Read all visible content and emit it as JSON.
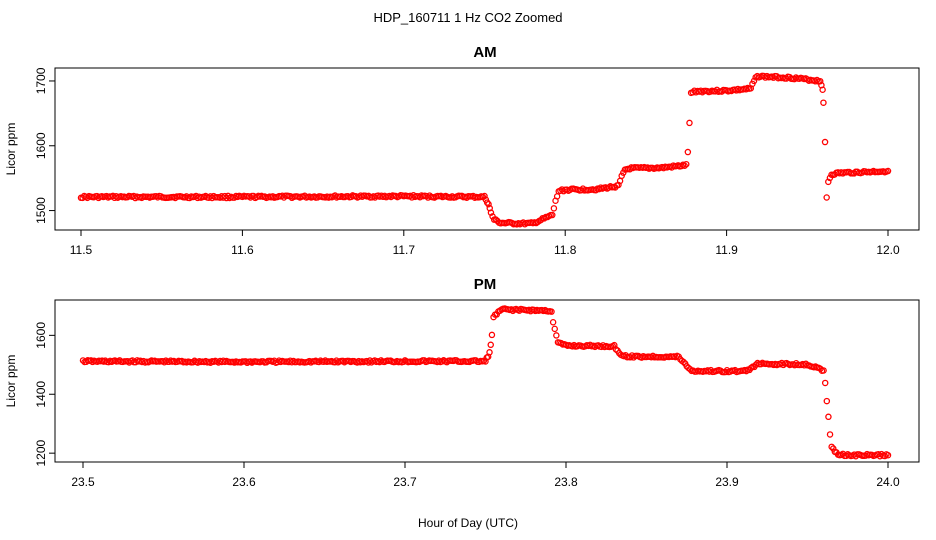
{
  "figure": {
    "title": "HDP_160711  1 Hz CO2 Zoomed",
    "xlabel": "Hour of Day (UTC)"
  },
  "chart_data": [
    {
      "type": "scatter",
      "title": "AM",
      "xlabel": "Hour of Day (UTC)",
      "ylabel": "Licor ppm",
      "xlim": [
        11.5,
        12.0
      ],
      "ylim": [
        1470,
        1720
      ],
      "xticks": [
        11.5,
        11.6,
        11.7,
        11.8,
        11.9,
        12.0
      ],
      "xtick_labels": [
        "11.5",
        "11.6",
        "11.7",
        "11.8",
        "11.9",
        "12.0"
      ],
      "yticks": [
        1500,
        1600,
        1700
      ],
      "ytick_labels": [
        "1500",
        "1600",
        "1700"
      ],
      "grid": false,
      "marker": "open-circle",
      "color": "#ff0000",
      "series": [
        {
          "x": [
            11.5,
            11.6,
            11.7,
            11.75,
            11.7525,
            11.754,
            11.756,
            11.76,
            11.77,
            11.78,
            11.792,
            11.794,
            11.796,
            11.8,
            11.82,
            11.833,
            11.835,
            11.837,
            11.84,
            11.86,
            11.875,
            11.876,
            11.877,
            11.878,
            11.88,
            11.9,
            11.915,
            11.917,
            11.919,
            11.92,
            11.94,
            11.958,
            11.9595,
            11.96,
            11.961,
            11.962,
            11.963,
            11.965,
            11.97,
            11.98,
            11.99,
            12.0
          ],
          "y": [
            1521,
            1521,
            1522,
            1521,
            1510,
            1496,
            1486,
            1481,
            1480,
            1480,
            1493,
            1514,
            1530,
            1532,
            1533,
            1538,
            1552,
            1563,
            1565,
            1566,
            1570,
            1590,
            1636,
            1680,
            1684,
            1685,
            1688,
            1700,
            1709,
            1707,
            1705,
            1700,
            1688,
            1665,
            1605,
            1520,
            1545,
            1556,
            1558,
            1559,
            1560,
            1561
          ]
        }
      ]
    },
    {
      "type": "scatter",
      "title": "PM",
      "xlabel": "Hour of Day (UTC)",
      "ylabel": "Licor ppm",
      "xlim": [
        23.5,
        24.0
      ],
      "ylim": [
        1170,
        1720
      ],
      "xticks": [
        23.5,
        23.6,
        23.7,
        23.8,
        23.9,
        24.0
      ],
      "xtick_labels": [
        "23.5",
        "23.6",
        "23.7",
        "23.8",
        "23.9",
        "24.0"
      ],
      "yticks": [
        1200,
        1400,
        1600
      ],
      "ytick_labels": [
        "1200",
        "1400",
        "1600"
      ],
      "grid": false,
      "marker": "open-circle",
      "color": "#ff0000",
      "series": [
        {
          "x": [
            23.5,
            23.6,
            23.7,
            23.75,
            23.7525,
            23.754,
            23.755,
            23.76,
            23.78,
            23.791,
            23.792,
            23.793,
            23.795,
            23.8,
            23.83,
            23.834,
            23.836,
            23.84,
            23.87,
            23.876,
            23.878,
            23.88,
            23.91,
            23.916,
            23.918,
            23.92,
            23.95,
            23.96,
            23.961,
            23.962,
            23.963,
            23.964,
            23.965,
            23.967,
            23.97,
            23.98,
            24.0
          ],
          "y": [
            1512,
            1510,
            1512,
            1512,
            1540,
            1600,
            1662,
            1688,
            1685,
            1683,
            1645,
            1620,
            1575,
            1565,
            1563,
            1535,
            1530,
            1528,
            1527,
            1490,
            1480,
            1479,
            1478,
            1490,
            1502,
            1503,
            1502,
            1480,
            1440,
            1380,
            1320,
            1260,
            1225,
            1205,
            1195,
            1193,
            1193
          ]
        }
      ]
    }
  ]
}
